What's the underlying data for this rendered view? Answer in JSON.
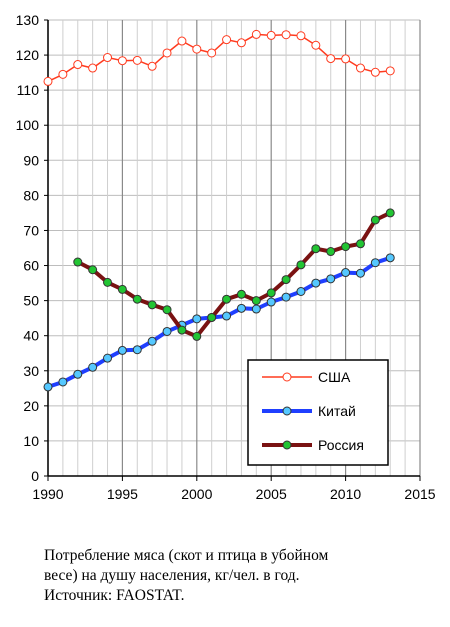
{
  "chart_data": {
    "type": "line",
    "xlim": [
      1990,
      2015
    ],
    "ylim": [
      0,
      130
    ],
    "xticks": [
      1990,
      1995,
      2000,
      2005,
      2010,
      2015
    ],
    "yticks": [
      0,
      10,
      20,
      30,
      40,
      50,
      60,
      70,
      80,
      90,
      100,
      110,
      120,
      130
    ],
    "grid": true,
    "legend_position": "bottom-right",
    "series": [
      {
        "name": "США",
        "color": "#ff3b1f",
        "marker_fill": "#ffffff",
        "line_width": "thin",
        "x": [
          1990,
          1991,
          1992,
          1993,
          1994,
          1995,
          1996,
          1997,
          1998,
          1999,
          2000,
          2001,
          2002,
          2003,
          2004,
          2005,
          2006,
          2007,
          2008,
          2009,
          2010,
          2011,
          2012,
          2013
        ],
        "y": [
          112.5,
          114.5,
          117.3,
          116.3,
          119.3,
          118.4,
          118.5,
          116.8,
          120.6,
          124.0,
          121.7,
          120.6,
          124.4,
          123.5,
          125.9,
          125.6,
          125.8,
          125.5,
          122.8,
          119.0,
          118.9,
          116.3,
          115.1,
          115.5
        ]
      },
      {
        "name": "Китай",
        "color": "#1f3fff",
        "marker_fill": "#55c8ff",
        "line_width": "thick",
        "x": [
          1990,
          1991,
          1992,
          1993,
          1994,
          1995,
          1996,
          1997,
          1998,
          1999,
          2000,
          2001,
          2002,
          2003,
          2004,
          2005,
          2006,
          2007,
          2008,
          2009,
          2010,
          2011,
          2012,
          2013
        ],
        "y": [
          25.4,
          26.8,
          29.0,
          31.0,
          33.6,
          35.8,
          36.0,
          38.4,
          41.2,
          43.0,
          44.8,
          45.2,
          45.6,
          47.8,
          47.6,
          49.6,
          51.0,
          52.6,
          55.0,
          56.2,
          58.0,
          57.8,
          60.8,
          62.2
        ]
      },
      {
        "name": "Россия",
        "color": "#7a1212",
        "marker_fill": "#22c433",
        "line_width": "thick",
        "x": [
          1992,
          1993,
          1994,
          1995,
          1996,
          1997,
          1998,
          1999,
          2000,
          2001,
          2002,
          2003,
          2004,
          2005,
          2006,
          2007,
          2008,
          2009,
          2010,
          2011,
          2012,
          2013
        ],
        "y": [
          61.0,
          58.8,
          55.2,
          53.2,
          50.4,
          48.8,
          47.4,
          41.6,
          39.8,
          45.2,
          50.4,
          51.8,
          50.0,
          52.2,
          56.0,
          60.2,
          64.8,
          64.0,
          65.4,
          66.2,
          73.0,
          75.0
        ]
      }
    ]
  },
  "caption": {
    "line1": "Потребление мяса (скот и птица в убойном",
    "line2": "весе) на душу населения, кг/чел. в год.",
    "line3": "Источник: FAOSTAT."
  }
}
